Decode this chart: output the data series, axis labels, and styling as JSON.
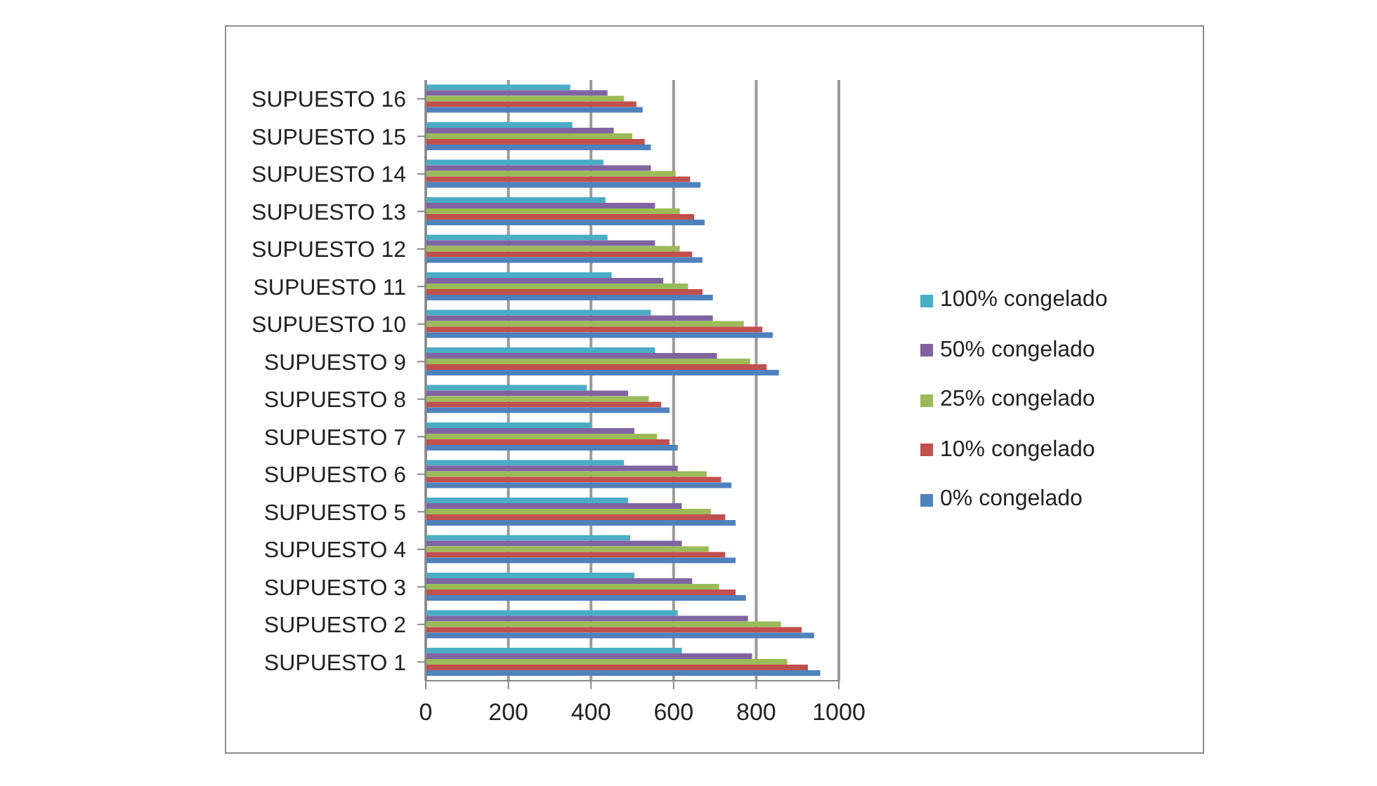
{
  "chart_data": {
    "type": "bar",
    "orientation": "horizontal",
    "categories": [
      "SUPUESTO 16",
      "SUPUESTO 15",
      "SUPUESTO 14",
      "SUPUESTO 13",
      "SUPUESTO 12",
      "SUPUESTO 11",
      "SUPUESTO 10",
      "SUPUESTO 9",
      "SUPUESTO 8",
      "SUPUESTO 7",
      "SUPUESTO 6",
      "SUPUESTO 5",
      "SUPUESTO 4",
      "SUPUESTO 3",
      "SUPUESTO 2",
      "SUPUESTO 1"
    ],
    "series": [
      {
        "name": "100% congelado",
        "color": "#4bacc6",
        "values": [
          350,
          355,
          430,
          435,
          440,
          450,
          545,
          555,
          390,
          400,
          480,
          490,
          495,
          505,
          610,
          620
        ]
      },
      {
        "name": "50% congelado",
        "color": "#8064a2",
        "values": [
          440,
          455,
          545,
          555,
          555,
          575,
          695,
          705,
          490,
          505,
          610,
          620,
          620,
          645,
          780,
          790
        ]
      },
      {
        "name": "25% congelado",
        "color": "#9bbb59",
        "values": [
          480,
          500,
          605,
          615,
          615,
          635,
          770,
          785,
          540,
          560,
          680,
          690,
          685,
          710,
          860,
          875
        ]
      },
      {
        "name": "10% congelado",
        "color": "#c0504d",
        "values": [
          510,
          530,
          640,
          650,
          645,
          670,
          815,
          825,
          570,
          590,
          715,
          725,
          725,
          750,
          910,
          925
        ]
      },
      {
        "name": "0% congelado",
        "color": "#4f81bd",
        "values": [
          525,
          545,
          665,
          675,
          670,
          695,
          840,
          855,
          590,
          610,
          740,
          750,
          750,
          775,
          940,
          955
        ]
      }
    ],
    "xlim": [
      0,
      1000
    ],
    "xticks": [
      0,
      200,
      400,
      600,
      800,
      1000
    ],
    "grid": "x",
    "legend": "right"
  }
}
